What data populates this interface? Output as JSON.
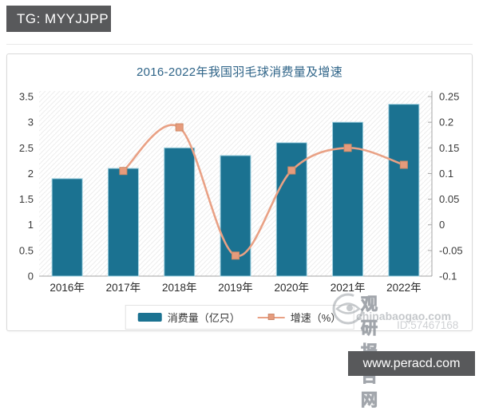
{
  "overlays": {
    "tg_badge": "TG: MYYJJPP",
    "site_badge": "www.peracd.com"
  },
  "watermark": {
    "brand": "观研报告网",
    "domain": "chinabaogao.com",
    "id": "ID:57467168"
  },
  "chart_data": {
    "type": "bar",
    "title": "2016-2022年我国羽毛球消费量及增速",
    "categories": [
      "2016年",
      "2017年",
      "2018年",
      "2019年",
      "2020年",
      "2021年",
      "2022年"
    ],
    "series": [
      {
        "name": "消费量（亿只）",
        "kind": "bar",
        "axis": "left",
        "color": "#1b7291",
        "border_color": "#a2d3e2",
        "values": [
          1.9,
          2.1,
          2.5,
          2.35,
          2.6,
          3.0,
          3.35
        ]
      },
      {
        "name": "增速（%）",
        "kind": "line",
        "axis": "right",
        "color": "#e9a185",
        "marker_color": "#e69b7c",
        "marker_border": "#d08a66",
        "values": [
          null,
          0.105,
          0.19,
          -0.06,
          0.106,
          0.15,
          0.117
        ]
      }
    ],
    "left_axis": {
      "min": 0,
      "max": 3.5,
      "tick_labels": [
        "0",
        "0.5",
        "1",
        "1.5",
        "2",
        "2.5",
        "3",
        "3.5"
      ]
    },
    "right_axis": {
      "min": -0.1,
      "max": 0.25,
      "tick_labels": [
        "-0.1",
        "-0.05",
        "0",
        "0.05",
        "0.1",
        "0.15",
        "0.2",
        "0.25"
      ]
    },
    "legend_position": "bottom",
    "grid": false
  }
}
